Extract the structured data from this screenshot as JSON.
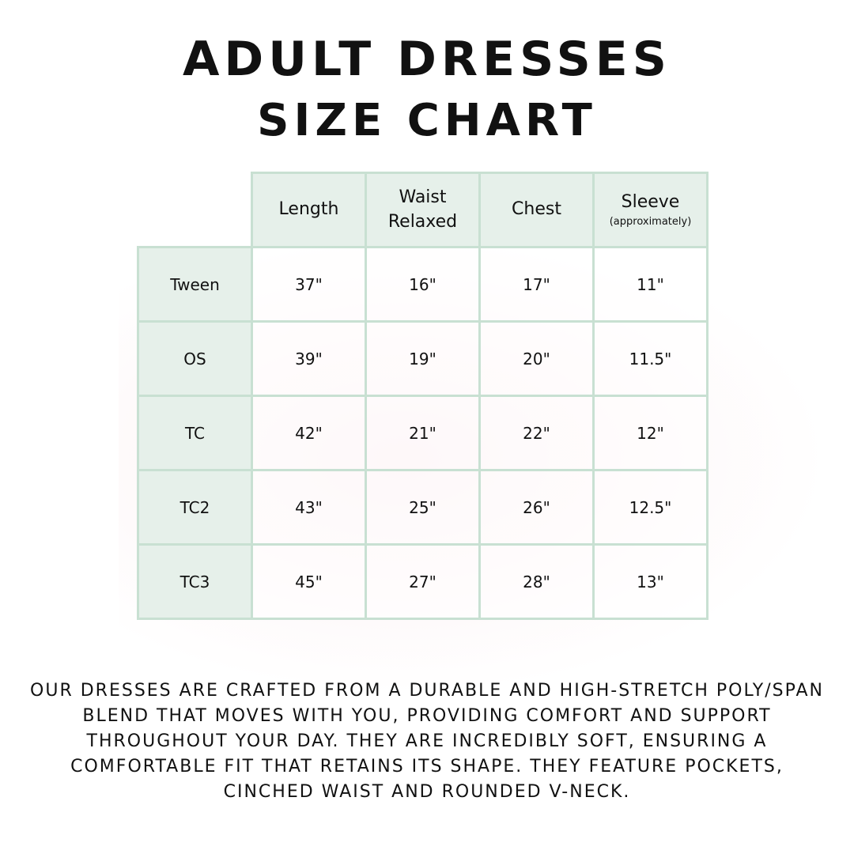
{
  "title": {
    "line1": "Adult Dresses",
    "line2": "Size Chart"
  },
  "table": {
    "headers": [
      {
        "label": "Length",
        "sub": ""
      },
      {
        "label": "Waist Relaxed",
        "sub": ""
      },
      {
        "label": "Chest",
        "sub": ""
      },
      {
        "label": "Sleeve",
        "sub": "(approximately)"
      }
    ],
    "rows": [
      {
        "size": "Tween",
        "values": [
          "37\"",
          "16\"",
          "17\"",
          "11\""
        ]
      },
      {
        "size": "OS",
        "values": [
          "39\"",
          "19\"",
          "20\"",
          "11.5\""
        ]
      },
      {
        "size": "TC",
        "values": [
          "42\"",
          "21\"",
          "22\"",
          "12\""
        ]
      },
      {
        "size": "TC2",
        "values": [
          "43\"",
          "25\"",
          "26\"",
          "12.5\""
        ]
      },
      {
        "size": "TC3",
        "values": [
          "45\"",
          "27\"",
          "28\"",
          "13\""
        ]
      }
    ]
  },
  "description": "Our dresses are crafted from a durable and high-stretch poly/span blend that moves with you, providing comfort and support throughout your day. They are incredibly soft, ensuring a comfortable fit that retains its shape. They feature pockets, cinched waist and rounded V-neck.",
  "colors": {
    "header_bg": "#e6f0ea",
    "border": "#c8e0d2"
  }
}
